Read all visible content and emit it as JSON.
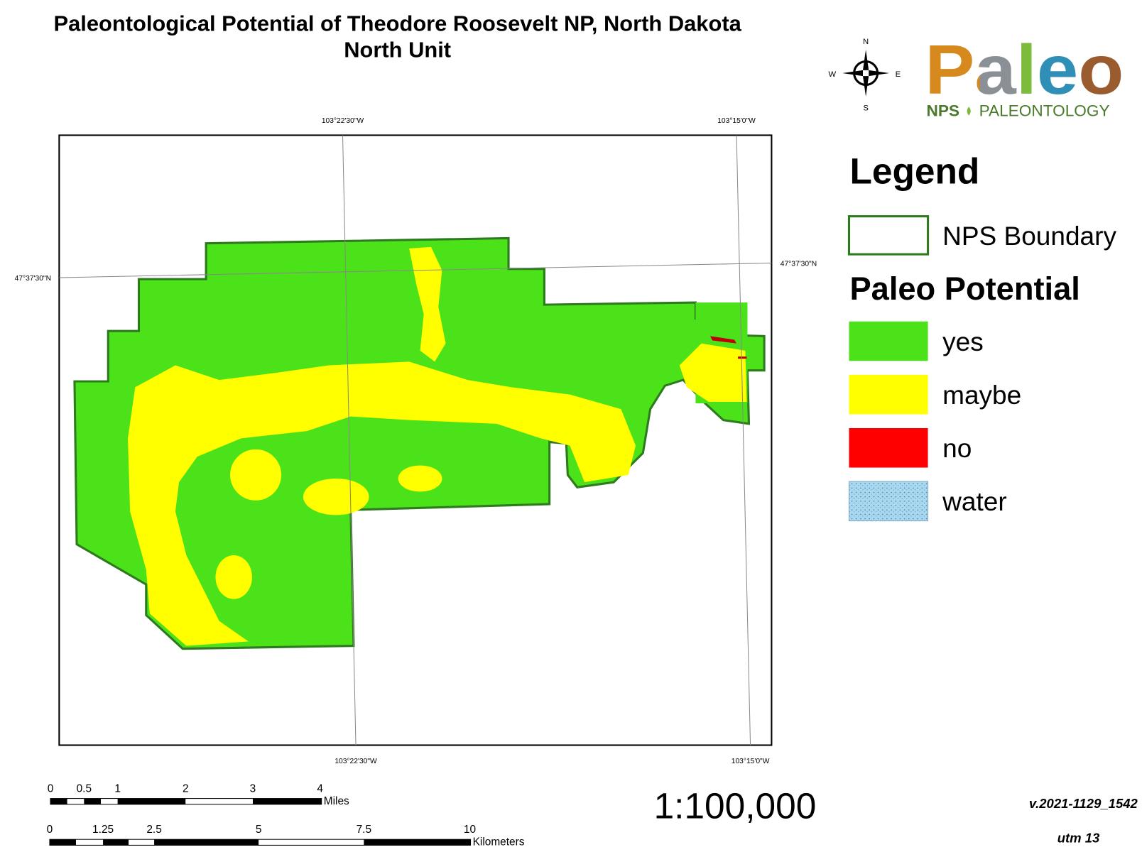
{
  "title": {
    "line1": "Paleontological Potential of Theodore Roosevelt NP, North Dakota",
    "line2": "North Unit"
  },
  "compass": {
    "n": "N",
    "s": "S",
    "e": "E",
    "w": "W"
  },
  "logo": {
    "word": "Paleo",
    "org": "NPS",
    "sub": "PALEONTOLOGY"
  },
  "graticule": {
    "top": [
      "103°22'30\"W",
      "103°15'0\"W"
    ],
    "bottom": [
      "103°22'30\"W",
      "103°15'0\"W"
    ],
    "left": "47°37'30\"N",
    "right": "47°37'30\"N"
  },
  "legend": {
    "title": "Legend",
    "boundary": "NPS Boundary",
    "group": "Paleo Potential",
    "items": [
      "yes",
      "maybe",
      "no",
      "water"
    ]
  },
  "scale_bar": {
    "miles": {
      "ticks": [
        "0",
        "0.5",
        "1",
        "2",
        "3",
        "4"
      ],
      "unit": "Miles"
    },
    "km": {
      "ticks": [
        "0",
        "1.25",
        "2.5",
        "5",
        "7.5",
        "10"
      ],
      "unit": "Kilometers"
    }
  },
  "scale": "1:100,000",
  "version": "v.2021-1129_1542",
  "projection": "utm 13"
}
